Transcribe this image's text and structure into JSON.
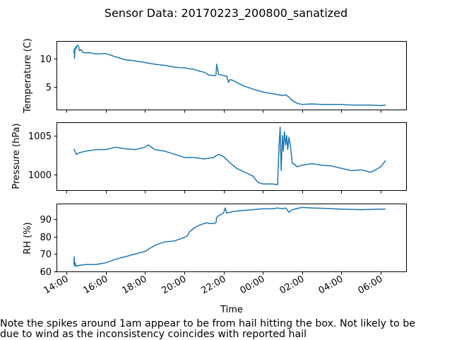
{
  "chart_data": {
    "type": "line",
    "title": "Sensor Data: 20170223_200800_sanatized",
    "xlabel": "Time",
    "x_ticks": [
      "14:00",
      "16:00",
      "18:00",
      "20:00",
      "22:00",
      "00:00",
      "02:00",
      "04:00",
      "06:00"
    ],
    "x_range": [
      "2017-02-23 14:00",
      "2017-02-24 06:00"
    ],
    "color": "#1f77b4",
    "panels": [
      {
        "name": "temperature",
        "ylabel": "Temperature (C)",
        "yticks": [
          5,
          10
        ],
        "ylim": [
          1.0,
          13.1
        ],
        "series": [
          {
            "x": [
              "14:23",
              "14:24",
              "14:25",
              "14:26",
              "14:28",
              "14:30",
              "14:33",
              "14:37",
              "14:40",
              "14:45",
              "14:50",
              "15:00",
              "15:15",
              "15:30",
              "16:00",
              "16:30",
              "17:00",
              "17:30",
              "18:00",
              "18:30",
              "19:00",
              "19:30",
              "19:45",
              "20:00",
              "20:15",
              "20:30",
              "20:45",
              "21:00",
              "21:15",
              "21:30",
              "21:35",
              "21:37",
              "21:39",
              "21:45",
              "22:00",
              "22:10",
              "22:15",
              "22:20",
              "22:30",
              "23:00",
              "23:30",
              "00:00",
              "00:30",
              "01:00",
              "01:10",
              "01:20",
              "01:30",
              "01:45",
              "02:00",
              "02:30",
              "03:00",
              "03:30",
              "04:00",
              "04:30",
              "05:00",
              "05:30",
              "06:00",
              "06:15"
            ],
            "y": [
              11.0,
              11.7,
              10.0,
              11.6,
              12.0,
              11.8,
              12.4,
              12.2,
              11.4,
              11.6,
              11.1,
              11.0,
              11.0,
              10.8,
              10.9,
              10.3,
              9.8,
              9.6,
              9.3,
              9.0,
              8.8,
              8.5,
              8.4,
              8.4,
              8.2,
              8.1,
              7.8,
              7.6,
              7.1,
              7.0,
              7.0,
              7.1,
              9.0,
              7.2,
              7.0,
              6.9,
              5.8,
              6.3,
              6.1,
              5.2,
              4.6,
              4.1,
              3.8,
              3.5,
              3.6,
              3.2,
              2.6,
              2.1,
              1.9,
              2.0,
              1.9,
              1.9,
              1.9,
              1.8,
              1.8,
              1.8,
              1.7,
              1.8
            ]
          }
        ]
      },
      {
        "name": "pressure",
        "ylabel": "Pressure (hPa)",
        "yticks": [
          1000,
          1005
        ],
        "ylim": [
          998.0,
          1006.7
        ],
        "series": [
          {
            "x": [
              "14:23",
              "14:30",
              "14:40",
              "15:00",
              "15:30",
              "16:00",
              "16:30",
              "17:00",
              "17:30",
              "18:00",
              "18:10",
              "18:30",
              "19:00",
              "19:30",
              "20:00",
              "20:30",
              "21:00",
              "21:30",
              "21:45",
              "22:00",
              "22:20",
              "22:40",
              "23:00",
              "23:30",
              "23:45",
              "00:00",
              "00:30",
              "00:45",
              "00:50",
              "00:53",
              "00:56",
              "01:00",
              "01:03",
              "01:06",
              "01:10",
              "01:13",
              "01:16",
              "01:20",
              "01:25",
              "01:30",
              "01:45",
              "02:00",
              "02:30",
              "03:00",
              "03:30",
              "04:00",
              "04:30",
              "05:00",
              "05:30",
              "05:45",
              "06:00",
              "06:15"
            ],
            "y": [
              1003.3,
              1002.6,
              1002.8,
              1003.0,
              1003.2,
              1003.2,
              1003.5,
              1003.3,
              1003.2,
              1003.5,
              1003.8,
              1003.2,
              1003.0,
              1002.6,
              1002.2,
              1002.2,
              1002.0,
              1002.2,
              1002.6,
              1002.3,
              1001.5,
              1000.8,
              1000.4,
              999.8,
              999.0,
              998.8,
              998.8,
              998.7,
              1004.0,
              1006.1,
              1000.5,
              1005.0,
              1003.0,
              1005.5,
              1003.8,
              1005.0,
              1003.2,
              1004.8,
              1003.5,
              1001.5,
              1001.0,
              1001.2,
              1001.4,
              1001.2,
              1001.1,
              1000.8,
              1000.5,
              1000.6,
              1000.3,
              1000.6,
              1001.0,
              1001.8
            ]
          }
        ]
      },
      {
        "name": "rh",
        "ylabel": "RH (%)",
        "yticks": [
          60,
          70,
          80,
          90
        ],
        "ylim": [
          60.0,
          99.0
        ],
        "series": [
          {
            "x": [
              "14:23",
              "14:24",
              "14:25",
              "14:26",
              "14:30",
              "14:40",
              "15:00",
              "15:30",
              "16:00",
              "16:30",
              "17:00",
              "17:30",
              "18:00",
              "18:30",
              "19:00",
              "19:30",
              "20:00",
              "20:10",
              "20:15",
              "20:30",
              "20:45",
              "21:00",
              "21:10",
              "21:15",
              "21:30",
              "21:37",
              "21:39",
              "21:45",
              "22:00",
              "22:05",
              "22:10",
              "22:30",
              "23:00",
              "23:30",
              "00:00",
              "00:30",
              "00:45",
              "01:00",
              "01:10",
              "01:20",
              "01:30",
              "02:00",
              "02:30",
              "03:00",
              "04:00",
              "05:00",
              "06:00",
              "06:15"
            ],
            "y": [
              64.0,
              68.5,
              63.0,
              65.0,
              63.0,
              63.5,
              64.0,
              64.0,
              65.0,
              67.0,
              68.5,
              70.0,
              71.5,
              75.0,
              77.0,
              77.5,
              79.5,
              80.5,
              82.5,
              85.0,
              86.5,
              87.5,
              88.0,
              87.5,
              87.5,
              88.0,
              91.0,
              92.0,
              93.5,
              96.5,
              93.5,
              94.5,
              95.0,
              95.5,
              96.0,
              96.0,
              96.5,
              96.0,
              96.5,
              94.0,
              95.5,
              96.8,
              96.5,
              96.3,
              95.8,
              95.5,
              95.8,
              95.8
            ]
          }
        ]
      }
    ]
  },
  "note": {
    "line1": "Note the spikes around 1am appear to be from hail hitting the box. Not likely to be",
    "line2": "due to wind as the inconsistency coincides with reported hail"
  }
}
